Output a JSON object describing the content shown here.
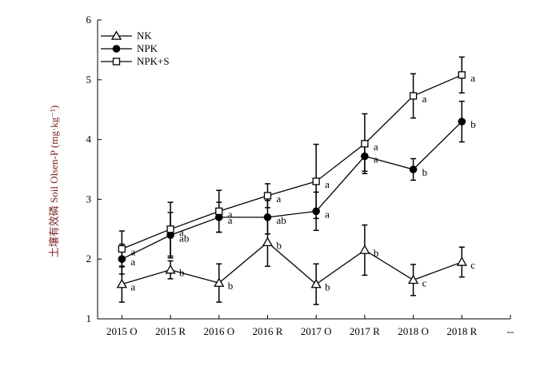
{
  "chart_data": {
    "type": "line",
    "title": "",
    "xlabel": "",
    "ylabel": "土壤有效磷 Soil Olsen-P (mg·kg⁻¹)",
    "ylim": [
      1,
      6
    ],
    "yticks": [
      "1",
      "2",
      "3",
      "4",
      "5",
      "6"
    ],
    "categories": [
      "2015 O",
      "2015 R",
      "2016 O",
      "2016 R",
      "2017 O",
      "2017 R",
      "2018 O",
      "2018 R"
    ],
    "trailing_tick_label": "--",
    "legend_position": "top-left",
    "series": [
      {
        "name": "NK",
        "marker": "triangle-open",
        "values": [
          1.58,
          1.82,
          1.6,
          2.28,
          1.58,
          2.15,
          1.65,
          1.95
        ],
        "errors": [
          0.3,
          0.15,
          0.32,
          0.4,
          0.34,
          0.42,
          0.26,
          0.25
        ],
        "labels": [
          "a",
          "b",
          "b",
          "b",
          "b",
          "b",
          "c",
          "c"
        ]
      },
      {
        "name": "NPK",
        "marker": "circle-filled",
        "values": [
          2.0,
          2.4,
          2.7,
          2.7,
          2.8,
          3.72,
          3.5,
          4.3
        ],
        "errors": [
          0.25,
          0.38,
          0.25,
          0.28,
          0.32,
          0.25,
          0.18,
          0.34
        ],
        "labels": [
          "a",
          "ab",
          "a",
          "ab",
          "a",
          "a",
          "b",
          "b"
        ]
      },
      {
        "name": "NPK+S",
        "marker": "square-open",
        "values": [
          2.17,
          2.5,
          2.8,
          3.06,
          3.3,
          3.93,
          4.73,
          5.08
        ],
        "errors": [
          0.3,
          0.45,
          0.35,
          0.2,
          0.62,
          0.5,
          0.37,
          0.3
        ],
        "labels": [
          "a",
          "a",
          "a",
          "a",
          "a",
          "a",
          "a",
          "a"
        ]
      }
    ]
  }
}
